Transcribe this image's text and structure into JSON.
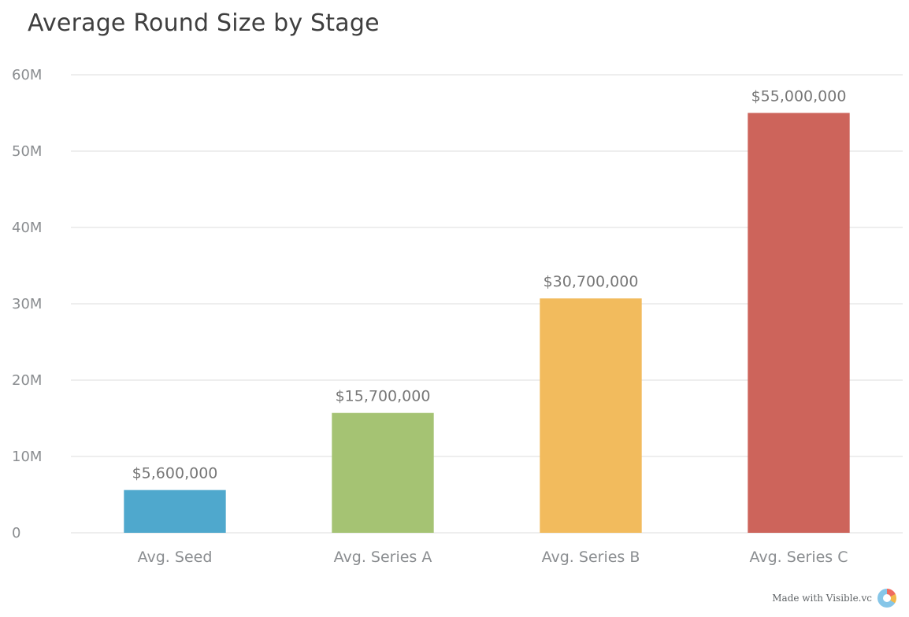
{
  "chart_data": {
    "type": "bar",
    "title": "Average Round Size by Stage",
    "categories": [
      "Avg. Seed",
      "Avg. Series A",
      "Avg. Series B",
      "Avg. Series C"
    ],
    "values": [
      5600000,
      15700000,
      30700000,
      55000000
    ],
    "data_labels": [
      "$5,600,000",
      "$15,700,000",
      "$30,700,000",
      "$55,000,000"
    ],
    "colors": [
      "#4fa8cd",
      "#a5c373",
      "#f2bb5d",
      "#cd645b"
    ],
    "ylim": [
      0,
      60000000
    ],
    "yticks": [
      0,
      10000000,
      20000000,
      30000000,
      40000000,
      50000000,
      60000000
    ],
    "ytick_labels": [
      "0",
      "10M",
      "20M",
      "30M",
      "40M",
      "50M",
      "60M"
    ],
    "grid": true,
    "legend": false
  },
  "colors": {
    "grid": "#e9e9e9",
    "axis_text": "#8a8d90",
    "data_label": "#777777",
    "title": "#3f3f3f"
  },
  "footer": {
    "label": "Made with Visible.vc",
    "icon": "visible-logo-icon"
  }
}
